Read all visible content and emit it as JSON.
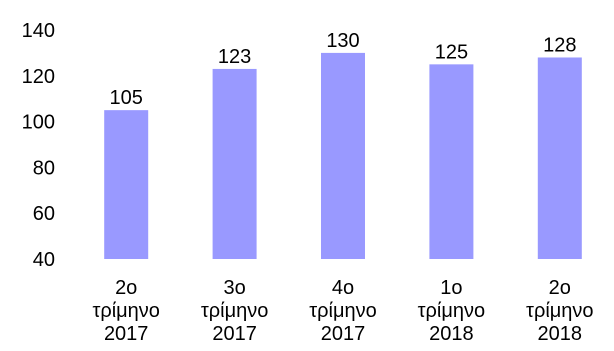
{
  "chart_data": {
    "type": "bar",
    "categories": [
      [
        "2ο",
        "τρίμηνο",
        "2017"
      ],
      [
        "3ο",
        "τρίμηνο",
        "2017"
      ],
      [
        "4ο",
        "τρίμηνο",
        "2017"
      ],
      [
        "1ο",
        "τρίμηνο",
        "2018"
      ],
      [
        "2ο",
        "τρίμηνο",
        "2018"
      ]
    ],
    "values": [
      105,
      123,
      130,
      125,
      128
    ],
    "ylim": [
      40,
      140
    ],
    "yticks": [
      40,
      60,
      80,
      100,
      120,
      140
    ],
    "grid": false,
    "legend": "none",
    "bar_color": "#9999ff",
    "title": "",
    "xlabel": "",
    "ylabel": ""
  }
}
